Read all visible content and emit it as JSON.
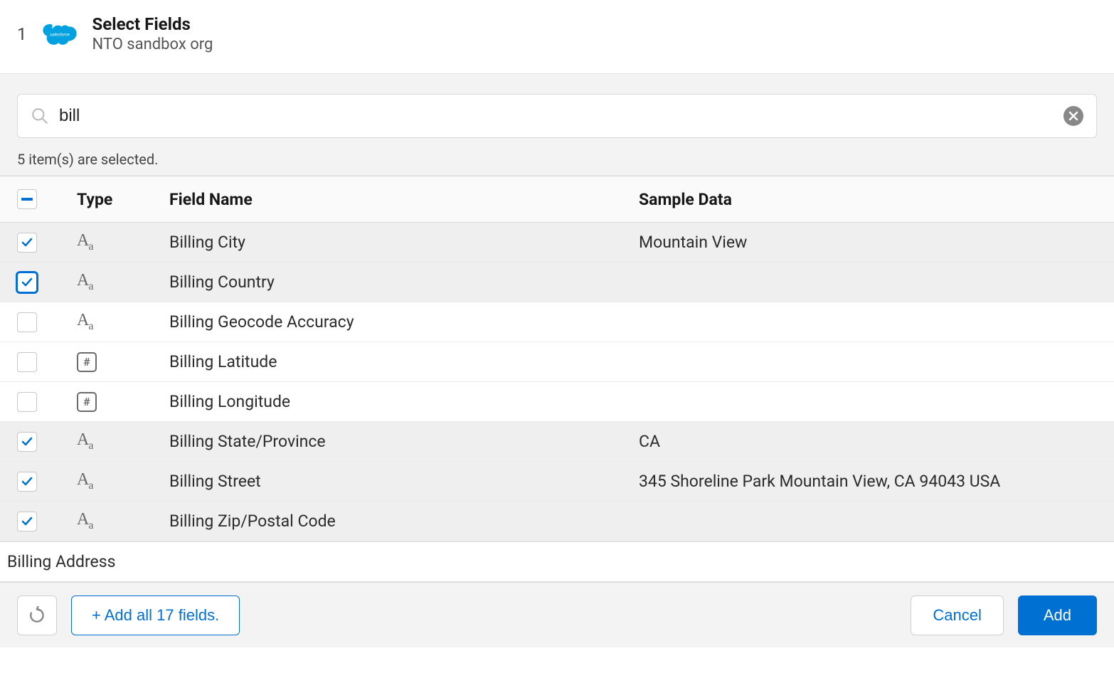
{
  "header": {
    "step": "1",
    "title": "Select Fields",
    "subtitle": "NTO sandbox org",
    "icon_color": "#00a1e0",
    "icon_text": "salesforce"
  },
  "search": {
    "value": "bill",
    "placeholder": ""
  },
  "selection_text": "5 item(s) are selected.",
  "columns": {
    "type": "Type",
    "field_name": "Field Name",
    "sample_data": "Sample Data"
  },
  "header_checkbox": "indeterminate",
  "rows": [
    {
      "checked": true,
      "focused": false,
      "type": "text",
      "field_name": "Billing City",
      "sample_data": "Mountain View"
    },
    {
      "checked": true,
      "focused": true,
      "type": "text",
      "field_name": "Billing Country",
      "sample_data": ""
    },
    {
      "checked": false,
      "focused": false,
      "type": "text",
      "field_name": "Billing Geocode Accuracy",
      "sample_data": ""
    },
    {
      "checked": false,
      "focused": false,
      "type": "number",
      "field_name": "Billing Latitude",
      "sample_data": ""
    },
    {
      "checked": false,
      "focused": false,
      "type": "number",
      "field_name": "Billing Longitude",
      "sample_data": ""
    },
    {
      "checked": true,
      "focused": false,
      "type": "text",
      "field_name": "Billing State/Province",
      "sample_data": "CA"
    },
    {
      "checked": true,
      "focused": false,
      "type": "text",
      "field_name": "Billing Street",
      "sample_data": "345 Shoreline Park Mountain View, CA 94043 USA"
    },
    {
      "checked": true,
      "focused": false,
      "type": "text",
      "field_name": "Billing Zip/Postal Code",
      "sample_data": ""
    }
  ],
  "group_label": "Billing Address",
  "footer": {
    "add_all_label": "+ Add all 17 fields.",
    "cancel_label": "Cancel",
    "add_label": "Add"
  },
  "colors": {
    "primary": "#0070d2",
    "background_alt": "#f3f3f3",
    "row_selected": "#efefef",
    "border": "#dcdcdc",
    "text": "#181818",
    "muted": "#6b6b6b"
  }
}
